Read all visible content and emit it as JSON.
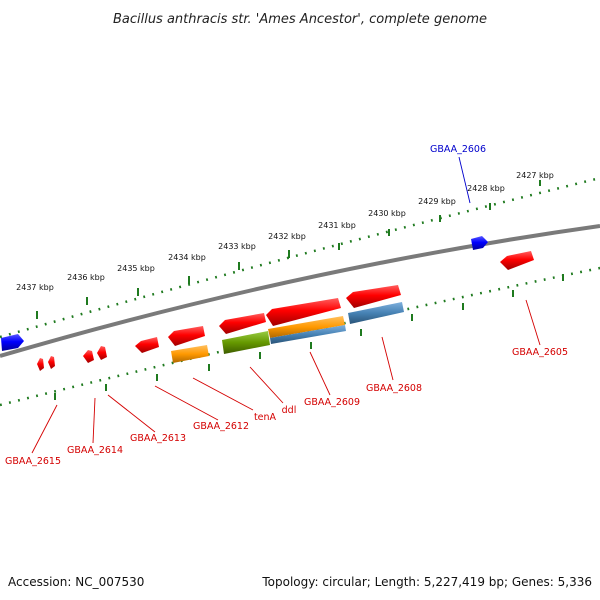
{
  "title": "Bacillus anthracis str. 'Ames Ancestor', complete genome",
  "footer": {
    "accession": "Accession: NC_007530",
    "info": "Topology: circular; Length: 5,227,419 bp; Genes: 5,336"
  },
  "colors": {
    "backbone": "#808080",
    "tick": "#1f7a1f",
    "forward_gene": "#ff0000",
    "reverse_gene": "#e00000",
    "label_red": "#d40000",
    "label_blue": "#0000cc",
    "blue_gene": "#0000ff",
    "orange_feature": "#ff9900",
    "green_feature": "#669900",
    "steelblue_feature": "#4682b4"
  },
  "kbp_labels": [
    "2427 kbp",
    "2428 kbp",
    "2429 kbp",
    "2430 kbp",
    "2431 kbp",
    "2432 kbp",
    "2433 kbp",
    "2434 kbp",
    "2435 kbp",
    "2436 kbp",
    "2437 kbp"
  ],
  "gene_labels": [
    "GBAA_2606",
    "GBAA_2605",
    "GBAA_2608",
    "GBAA_2609",
    "ddl",
    "tenA",
    "GBAA_2612",
    "GBAA_2613",
    "GBAA_2614",
    "GBAA_2615"
  ]
}
